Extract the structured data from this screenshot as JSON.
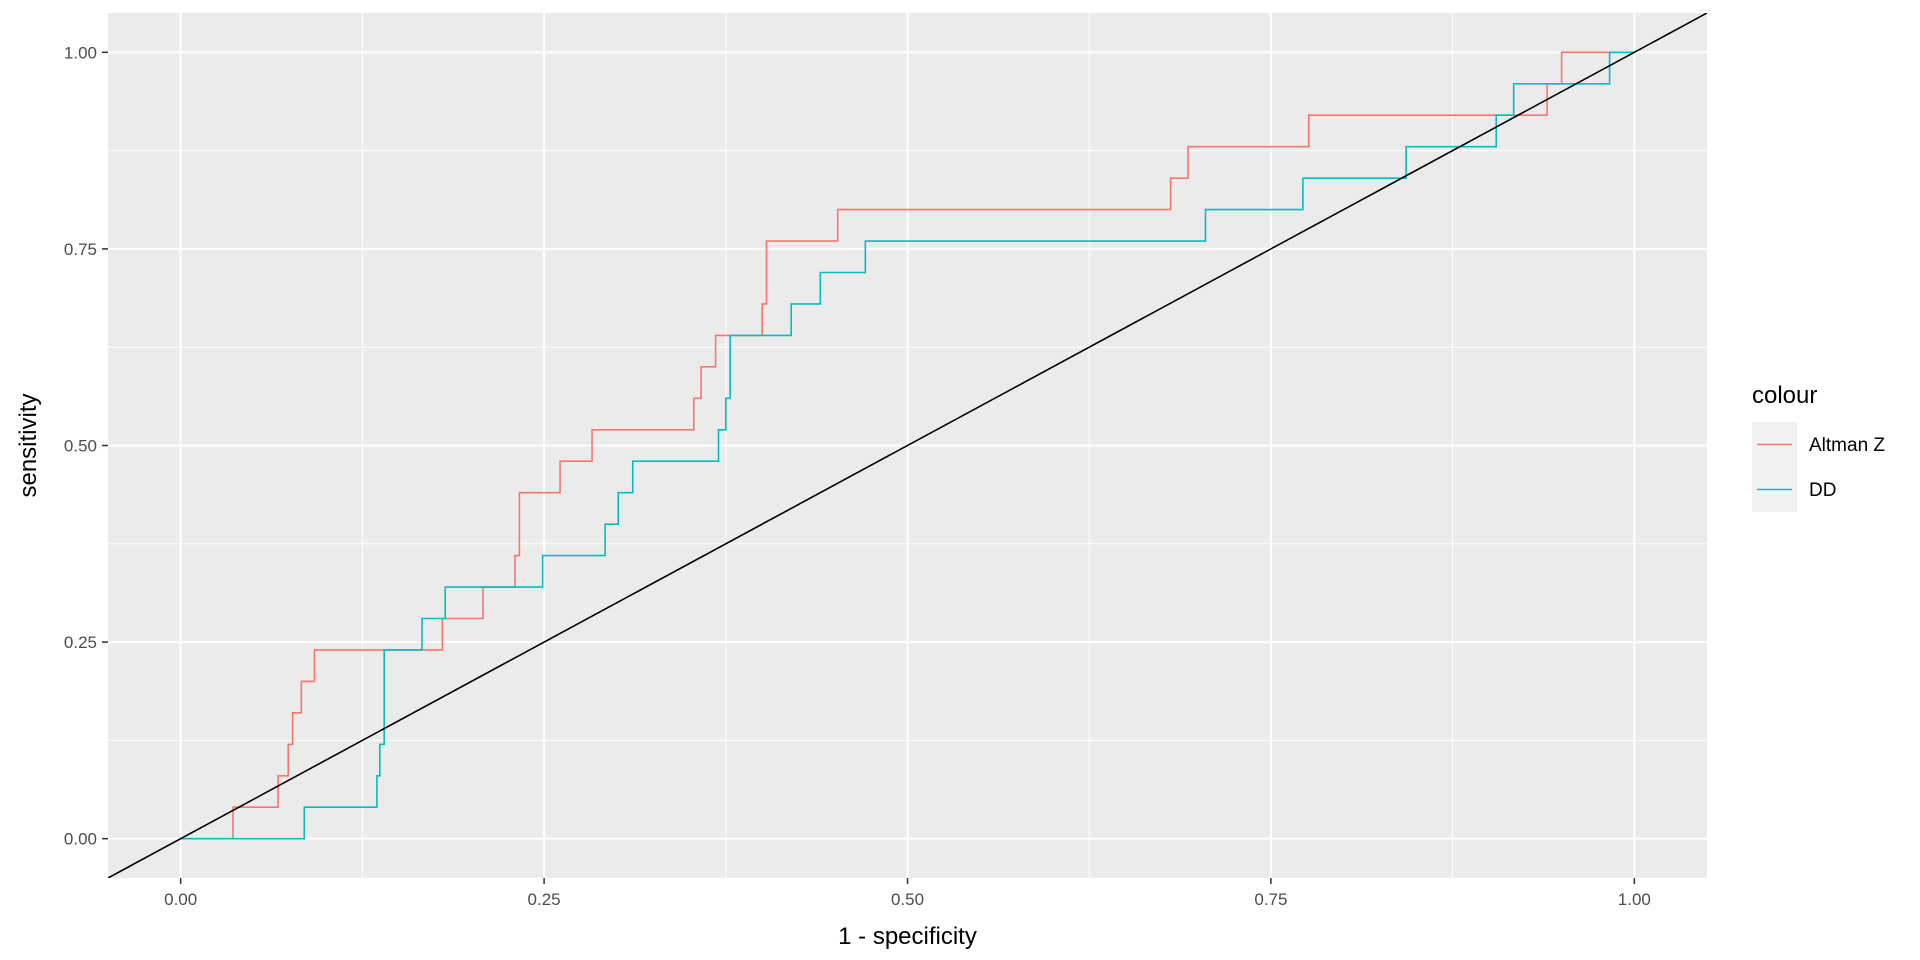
{
  "chart_data": {
    "type": "line",
    "title": "",
    "xlabel": "1 - specificity",
    "ylabel": "sensitivity",
    "xlim": [
      -0.05,
      1.05
    ],
    "ylim": [
      -0.05,
      1.05
    ],
    "x_ticks": [
      0.0,
      0.25,
      0.5,
      0.75,
      1.0
    ],
    "x_tick_labels": [
      "0.00",
      "0.25",
      "0.50",
      "0.75",
      "1.00"
    ],
    "y_ticks": [
      0.0,
      0.25,
      0.5,
      0.75,
      1.0
    ],
    "y_tick_labels": [
      "0.00",
      "0.25",
      "0.50",
      "0.75",
      "1.00"
    ],
    "grid": true,
    "legend": {
      "title": "colour",
      "position": "right"
    },
    "series": [
      {
        "name": "Altman Z",
        "color": "#F8766D",
        "step": true,
        "points": [
          [
            0.0,
            0.0
          ],
          [
            0.036,
            0.0
          ],
          [
            0.036,
            0.04
          ],
          [
            0.067,
            0.04
          ],
          [
            0.067,
            0.08
          ],
          [
            0.074,
            0.08
          ],
          [
            0.074,
            0.12
          ],
          [
            0.077,
            0.12
          ],
          [
            0.077,
            0.16
          ],
          [
            0.083,
            0.16
          ],
          [
            0.083,
            0.2
          ],
          [
            0.092,
            0.2
          ],
          [
            0.092,
            0.24
          ],
          [
            0.18,
            0.24
          ],
          [
            0.18,
            0.28
          ],
          [
            0.208,
            0.28
          ],
          [
            0.208,
            0.32
          ],
          [
            0.23,
            0.32
          ],
          [
            0.23,
            0.36
          ],
          [
            0.233,
            0.36
          ],
          [
            0.233,
            0.44
          ],
          [
            0.261,
            0.44
          ],
          [
            0.261,
            0.48
          ],
          [
            0.283,
            0.48
          ],
          [
            0.283,
            0.52
          ],
          [
            0.353,
            0.52
          ],
          [
            0.353,
            0.56
          ],
          [
            0.358,
            0.56
          ],
          [
            0.358,
            0.6
          ],
          [
            0.368,
            0.6
          ],
          [
            0.368,
            0.64
          ],
          [
            0.4,
            0.64
          ],
          [
            0.4,
            0.68
          ],
          [
            0.403,
            0.68
          ],
          [
            0.403,
            0.76
          ],
          [
            0.452,
            0.76
          ],
          [
            0.452,
            0.8
          ],
          [
            0.681,
            0.8
          ],
          [
            0.681,
            0.84
          ],
          [
            0.693,
            0.84
          ],
          [
            0.693,
            0.88
          ],
          [
            0.776,
            0.88
          ],
          [
            0.776,
            0.92
          ],
          [
            0.94,
            0.92
          ],
          [
            0.94,
            0.96
          ],
          [
            0.95,
            0.96
          ],
          [
            0.95,
            1.0
          ],
          [
            1.0,
            1.0
          ]
        ]
      },
      {
        "name": "DD",
        "color": "#00BFC4",
        "step": true,
        "points": [
          [
            0.0,
            0.0
          ],
          [
            0.085,
            0.0
          ],
          [
            0.085,
            0.04
          ],
          [
            0.135,
            0.04
          ],
          [
            0.135,
            0.08
          ],
          [
            0.137,
            0.08
          ],
          [
            0.137,
            0.12
          ],
          [
            0.14,
            0.12
          ],
          [
            0.14,
            0.24
          ],
          [
            0.166,
            0.24
          ],
          [
            0.166,
            0.28
          ],
          [
            0.182,
            0.28
          ],
          [
            0.182,
            0.32
          ],
          [
            0.249,
            0.32
          ],
          [
            0.249,
            0.36
          ],
          [
            0.292,
            0.36
          ],
          [
            0.292,
            0.4
          ],
          [
            0.301,
            0.4
          ],
          [
            0.301,
            0.44
          ],
          [
            0.311,
            0.44
          ],
          [
            0.311,
            0.48
          ],
          [
            0.37,
            0.48
          ],
          [
            0.37,
            0.52
          ],
          [
            0.375,
            0.52
          ],
          [
            0.375,
            0.56
          ],
          [
            0.378,
            0.56
          ],
          [
            0.378,
            0.64
          ],
          [
            0.42,
            0.64
          ],
          [
            0.42,
            0.68
          ],
          [
            0.44,
            0.68
          ],
          [
            0.44,
            0.72
          ],
          [
            0.471,
            0.72
          ],
          [
            0.471,
            0.76
          ],
          [
            0.705,
            0.76
          ],
          [
            0.705,
            0.8
          ],
          [
            0.772,
            0.8
          ],
          [
            0.772,
            0.84
          ],
          [
            0.843,
            0.84
          ],
          [
            0.843,
            0.88
          ],
          [
            0.905,
            0.88
          ],
          [
            0.905,
            0.92
          ],
          [
            0.917,
            0.92
          ],
          [
            0.917,
            0.96
          ],
          [
            0.983,
            0.96
          ],
          [
            0.983,
            1.0
          ],
          [
            1.0,
            1.0
          ]
        ]
      }
    ],
    "reference_line": {
      "slope": 1,
      "intercept": 0,
      "color": "#000000"
    }
  }
}
